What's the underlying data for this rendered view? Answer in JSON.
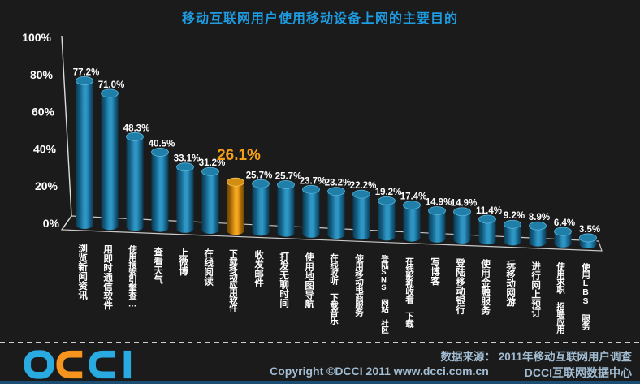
{
  "title": "移动互联网用户使用移动设备上网的主要目的",
  "colors": {
    "title": "#1E9CE1",
    "bar": "#1C80AB",
    "bar_top": "#1F7FA9",
    "highlight_bar": "#EE9C0D",
    "highlight_label": "#F5A014",
    "axis_text": "#FFFFFF",
    "value_label": "#FFFFFF",
    "footer_text": "#A2BCD2",
    "logo_blue": "#29ABE2",
    "logo_orange": "#F7941E",
    "background": "#1B1B1B"
  },
  "chart_data": {
    "type": "bar",
    "title": "移动互联网用户使用移动设备上网的主要目的",
    "xlabel": "",
    "ylabel": "",
    "unit": "%",
    "ylim": [
      0,
      100
    ],
    "grid": false,
    "legend": false,
    "style": "3d-cylinder",
    "yticks": [
      "0%",
      "20%",
      "40%",
      "60%",
      "80%",
      "100%"
    ],
    "highlight_index": 6,
    "categories": [
      "浏览新闻资讯",
      "用即时通信软件",
      "使用搜索引擎查…",
      "查看天气",
      "上微博",
      "在线阅读",
      "下载移动应用软件",
      "收发邮件",
      "打发无聊时间",
      "使用地图导航",
      "在线收听 下载音乐",
      "使用移动电商服务",
      "登陆SNS 网站 社区",
      "在线影视收看 下载",
      "写博客",
      "登陆移动银行",
      "使用金融服务",
      "玩移动网游",
      "进行网上预订",
      "使用求职 招聘应用",
      "使用LBS 服务"
    ],
    "values": [
      77.2,
      71.0,
      48.3,
      40.5,
      33.1,
      31.2,
      26.1,
      25.7,
      25.7,
      23.7,
      23.2,
      22.2,
      19.2,
      17.4,
      14.9,
      14.9,
      11.4,
      9.2,
      8.9,
      6.4,
      3.5
    ]
  },
  "footer": {
    "logo_text": "DCCI",
    "source_line": "数据来源： 2011年移动互联网用户调查",
    "copyright": "Copyright ©DCCI 2011 www.dcci.com.cn",
    "org": "DCCI互联网数据中心"
  }
}
